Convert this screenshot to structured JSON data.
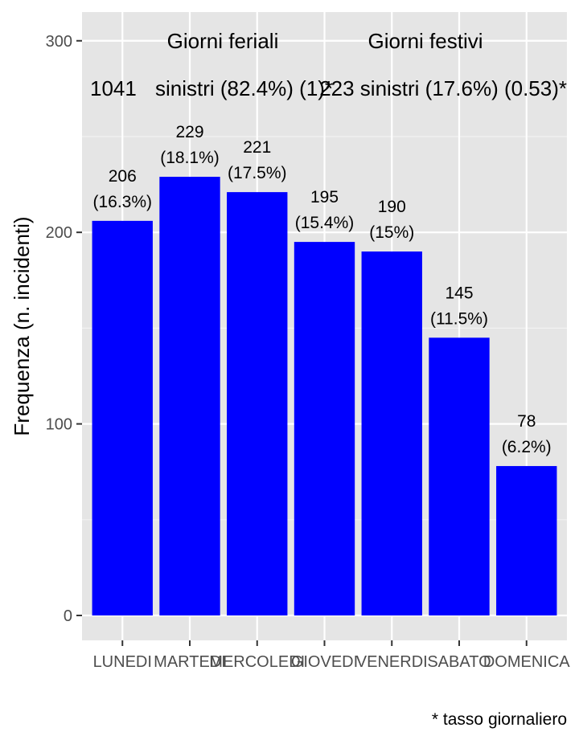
{
  "chart_data": {
    "type": "bar",
    "categories": [
      "LUNEDI",
      "MARTEDI",
      "MERCOLEDI",
      "GIOVEDI",
      "VENERDI",
      "SABATO",
      "DOMENICA"
    ],
    "values": [
      206,
      229,
      221,
      195,
      190,
      145,
      78
    ],
    "value_labels": [
      "206",
      "229",
      "221",
      "195",
      "190",
      "145",
      "78"
    ],
    "percent_labels": [
      "(16.3%)",
      "(18.1%)",
      "(17.5%)",
      "(15.4%)",
      "(15%)",
      "(11.5%)",
      "(6.2%)"
    ],
    "ylabel": "Frequenza (n. incidenti)",
    "ylim": [
      -13,
      315
    ],
    "yticks": [
      0,
      100,
      200,
      300
    ],
    "grid": true,
    "bar_color": "#0000ff",
    "panel_color": "#e5e5e5",
    "annotations": {
      "feriali_title": "Giorni feriali",
      "festivi_title": "Giorni festivi",
      "feriali_count": "1041",
      "feriali_text": "sinistri (82.4%) (1)*",
      "festivi_text": "223 sinistri (17.6%) (0.53)*"
    },
    "footnote": "* tasso giornaliero"
  }
}
